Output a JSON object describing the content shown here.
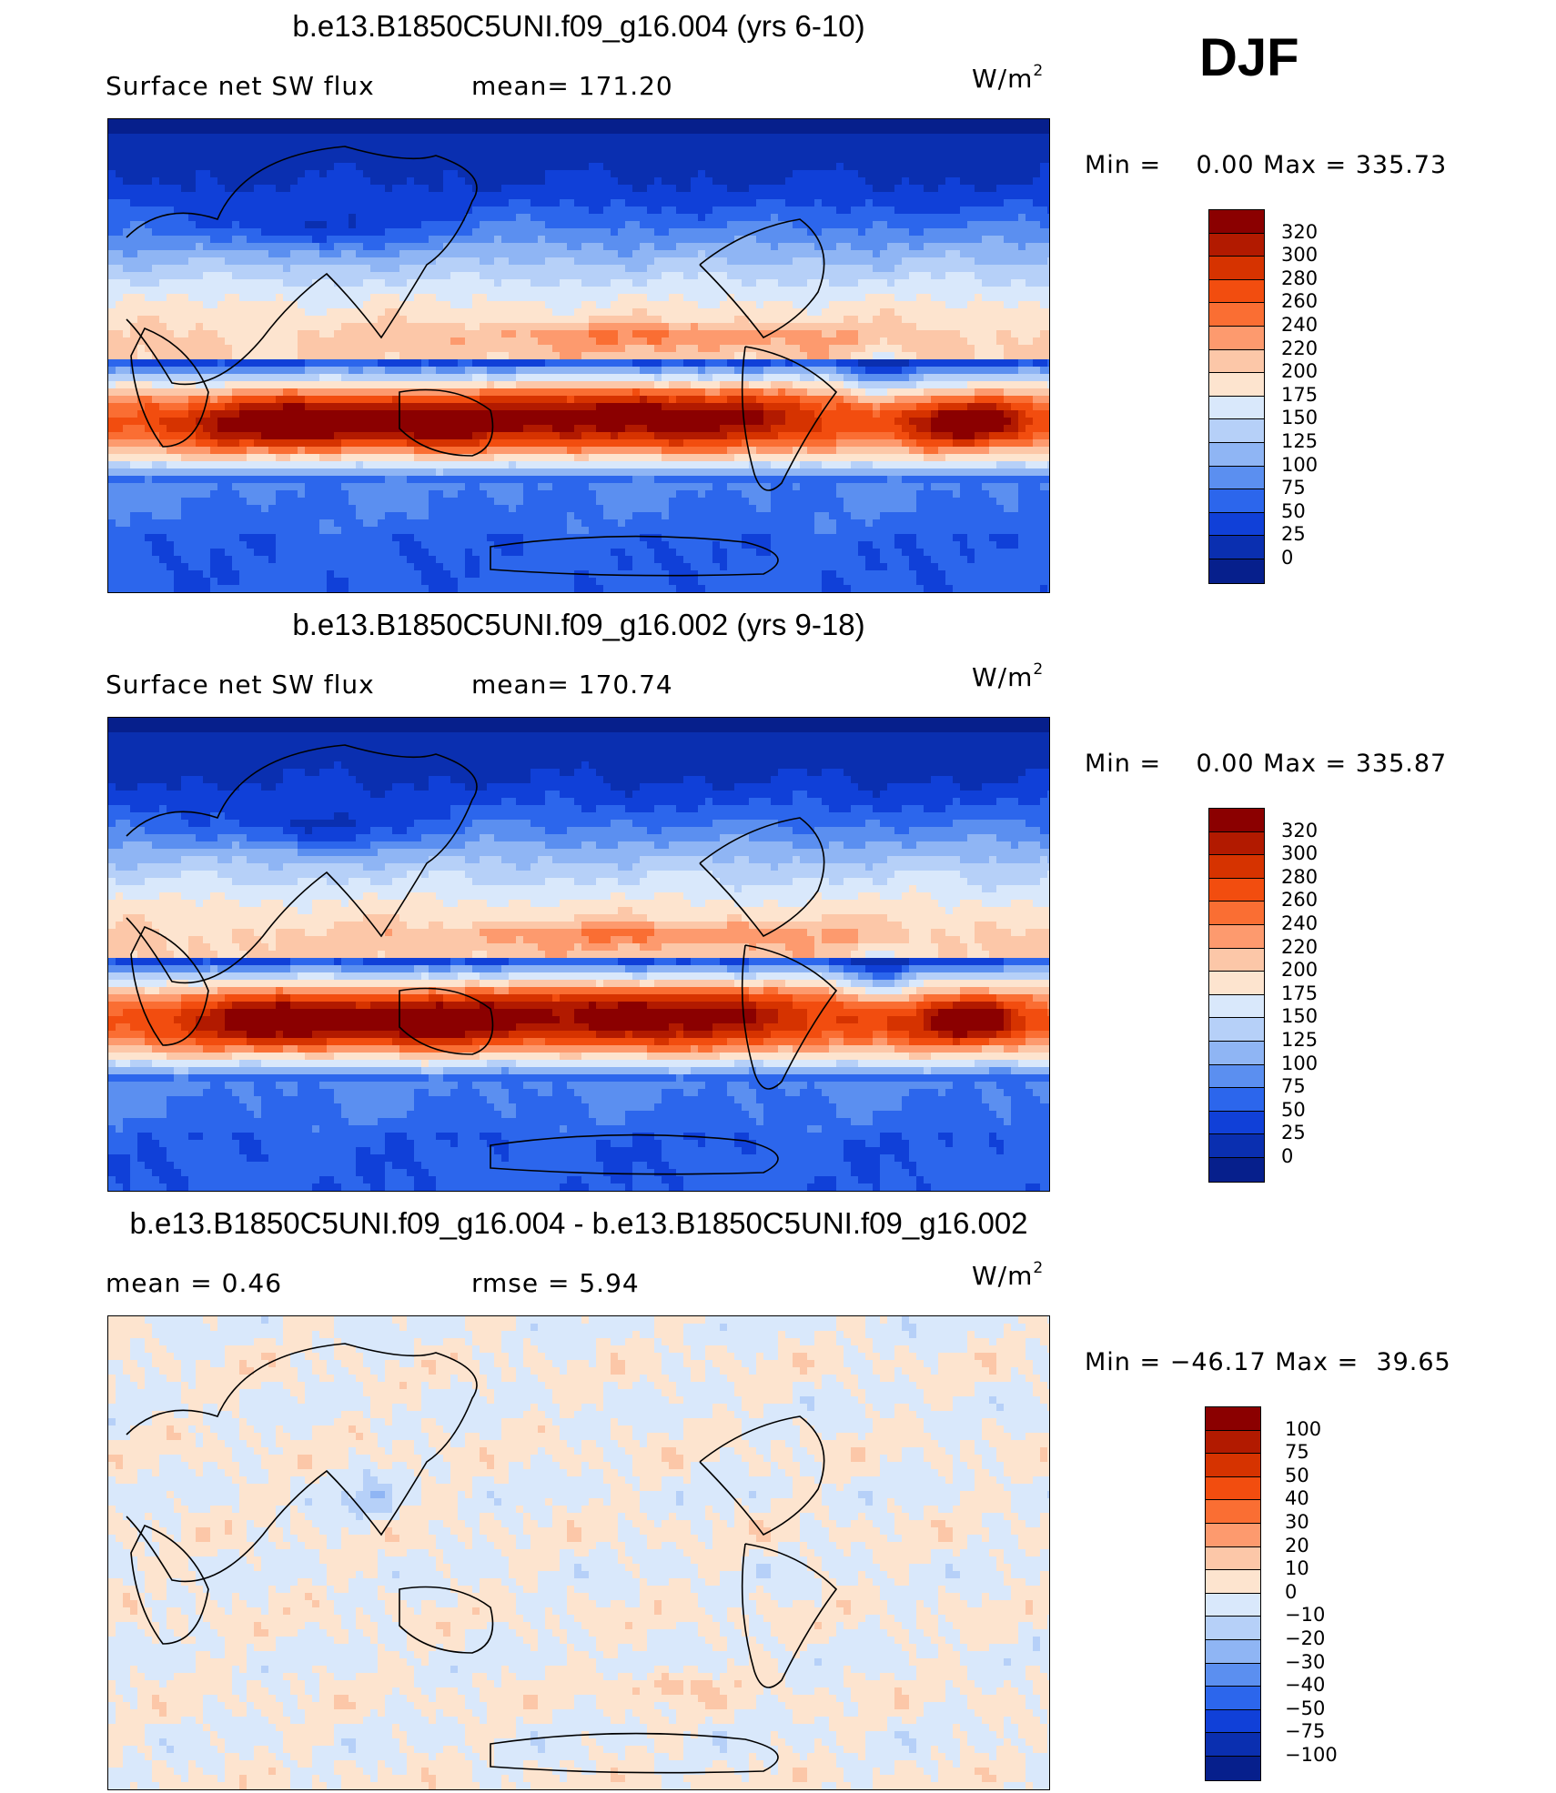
{
  "season": "DJF",
  "panels": [
    {
      "title": "b.e13.B1850C5UNI.f09_g16.004 (yrs 6-10)",
      "left_label": "Surface net SW flux",
      "mid_label": "mean= 171.20",
      "units": "W/m",
      "units_exp": "2",
      "minmax": "Min =    0.00 Max = 335.73",
      "legend_labels": [
        "320",
        "300",
        "280",
        "260",
        "240",
        "220",
        "200",
        "175",
        "150",
        "125",
        "100",
        "75",
        "50",
        "25",
        "0"
      ],
      "legend_colors": [
        "#8b0000",
        "#b21a00",
        "#d63300",
        "#f24d0f",
        "#fa6e33",
        "#fd9a6e",
        "#fcc7a8",
        "#fde4cf",
        "#d9e8fb",
        "#b6d0f8",
        "#8fb5f4",
        "#5b8ff0",
        "#2c66ec",
        "#1040d8",
        "#0a2fb0",
        "#061f8c"
      ],
      "field": "abs"
    },
    {
      "title": "b.e13.B1850C5UNI.f09_g16.002 (yrs 9-18)",
      "left_label": "Surface net SW flux",
      "mid_label": "mean= 170.74",
      "units": "W/m",
      "units_exp": "2",
      "minmax": "Min =    0.00 Max = 335.87",
      "legend_labels": [
        "320",
        "300",
        "280",
        "260",
        "240",
        "220",
        "200",
        "175",
        "150",
        "125",
        "100",
        "75",
        "50",
        "25",
        "0"
      ],
      "legend_colors": [
        "#8b0000",
        "#b21a00",
        "#d63300",
        "#f24d0f",
        "#fa6e33",
        "#fd9a6e",
        "#fcc7a8",
        "#fde4cf",
        "#d9e8fb",
        "#b6d0f8",
        "#8fb5f4",
        "#5b8ff0",
        "#2c66ec",
        "#1040d8",
        "#0a2fb0",
        "#061f8c"
      ],
      "field": "abs"
    },
    {
      "title": "b.e13.B1850C5UNI.f09_g16.004 - b.e13.B1850C5UNI.f09_g16.002",
      "left_label": "mean =    0.46",
      "mid_label": "rmse =    5.94",
      "units": "W/m",
      "units_exp": "2",
      "minmax": "Min = −46.17 Max =  39.65",
      "legend_labels": [
        "100",
        "75",
        "50",
        "40",
        "30",
        "20",
        "10",
        "0",
        "−10",
        "−20",
        "−30",
        "−40",
        "−50",
        "−75",
        "−100"
      ],
      "legend_colors": [
        "#8b0000",
        "#b21a00",
        "#d63300",
        "#f24d0f",
        "#fa6e33",
        "#fd9a6e",
        "#fcc7a8",
        "#fde4cf",
        "#d9e8fb",
        "#b6d0f8",
        "#8fb5f4",
        "#5b8ff0",
        "#2c66ec",
        "#1040d8",
        "#0a2fb0",
        "#061f8c"
      ],
      "field": "diff"
    }
  ]
}
